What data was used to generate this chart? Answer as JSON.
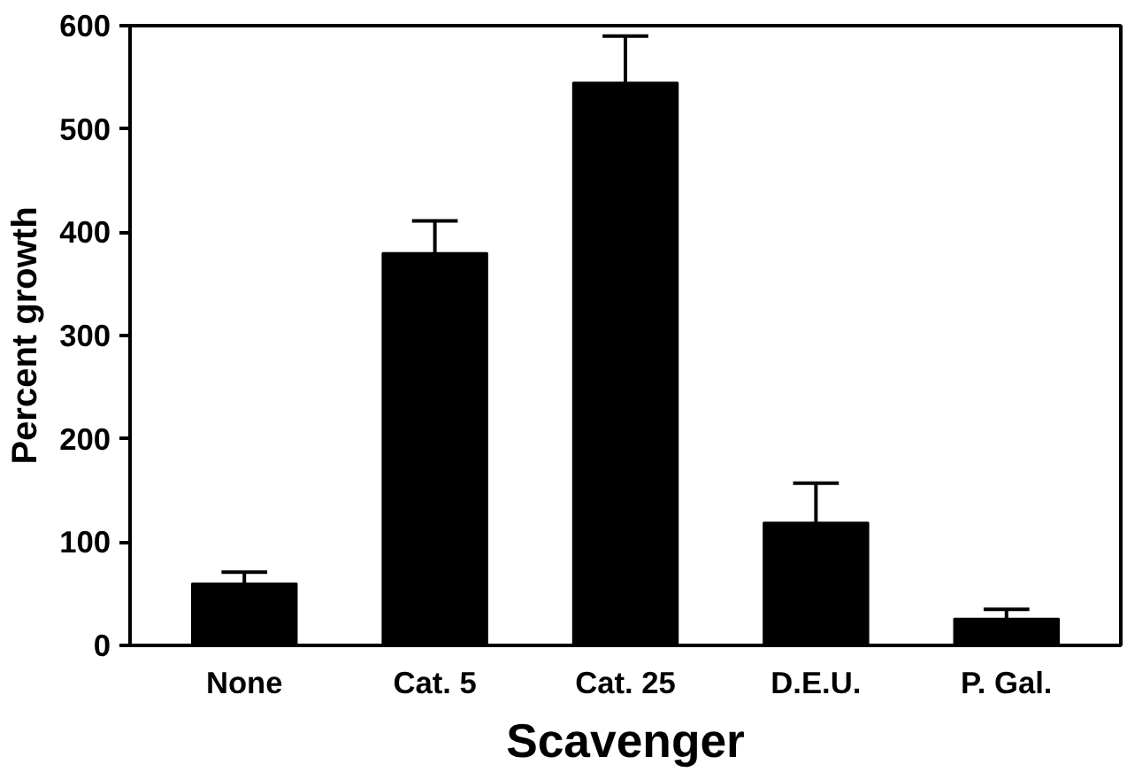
{
  "chart_data": {
    "type": "bar",
    "xlabel": "Scavenger",
    "ylabel": "Percent growth",
    "categories": [
      "None",
      "Cat. 5",
      "Cat. 25",
      "D.E.U.",
      "P. Gal."
    ],
    "values": [
      60,
      380,
      545,
      119,
      26
    ],
    "errors": [
      11,
      31,
      45,
      38,
      9
    ],
    "color": "#000000",
    "ylim": [
      0,
      600
    ],
    "yticks": [
      0,
      100,
      200,
      300,
      400,
      500,
      600
    ],
    "grid": false
  }
}
